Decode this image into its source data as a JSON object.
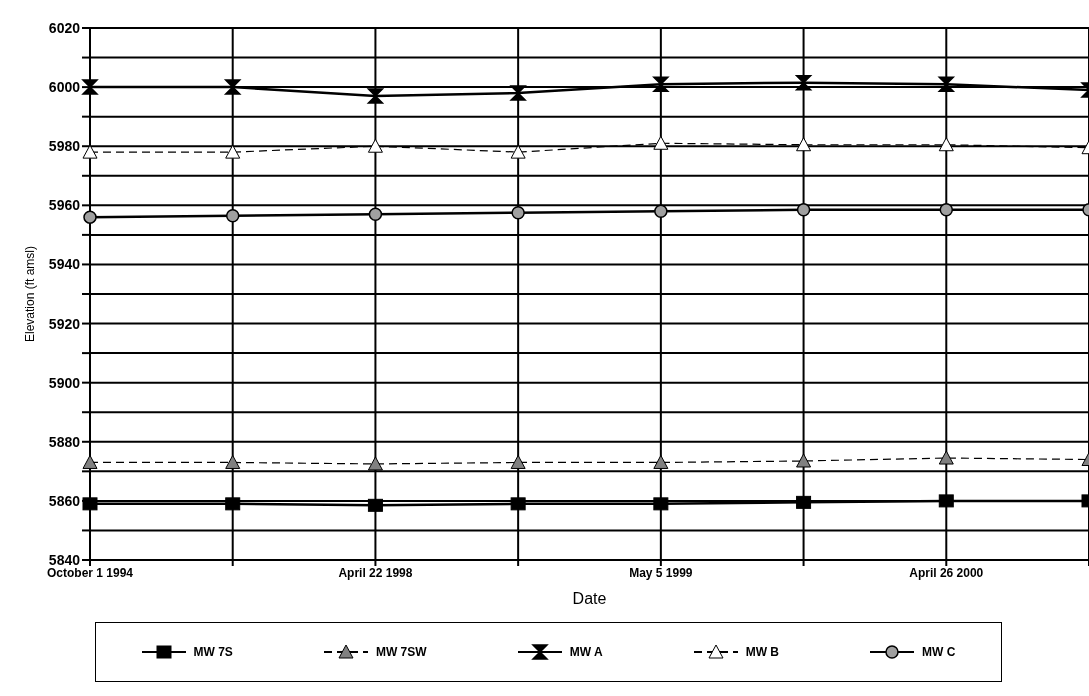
{
  "chart_data": {
    "type": "line",
    "xlabel": "Date",
    "ylabel": "Elevation (ft amsl)",
    "categories": [
      "October 1 1994",
      null,
      "April 22 1998",
      null,
      "May 5 1999",
      null,
      "April 26 2000",
      null
    ],
    "ylim": [
      5840,
      6020
    ],
    "yticks": [
      5840,
      {
        "value": 5850,
        "label": null
      },
      5860,
      {
        "value": 5870,
        "label": null
      },
      5880,
      {
        "value": 5890,
        "label": null
      },
      5900,
      {
        "value": 5910,
        "label": null
      },
      5920,
      {
        "value": 5930,
        "label": null
      },
      5940,
      {
        "value": 5950,
        "label": null
      },
      5960,
      {
        "value": 5970,
        "label": null
      },
      5980,
      {
        "value": 5990,
        "label": null
      },
      6000,
      {
        "value": 6010,
        "label": null
      },
      6020
    ],
    "grid": true,
    "legend": "bottom",
    "series": [
      {
        "name": "MW 7S",
        "color": "#000000",
        "marker": "square",
        "line_style": "solid",
        "values": [
          5859,
          5859,
          5858.5,
          5859,
          5859,
          5859.5,
          5860,
          5860
        ]
      },
      {
        "name": "MW 7SW",
        "color": "#808080",
        "marker": "triangle",
        "line_style": "dashed",
        "values": [
          5873,
          5873,
          5872.5,
          5873,
          5873,
          5873.5,
          5874.5,
          5874
        ]
      },
      {
        "name": "MW A",
        "color": "#000000",
        "marker": "star",
        "line_style": "solid",
        "values": [
          6000,
          6000,
          5997,
          5998,
          6001,
          6001.5,
          6001,
          5999
        ]
      },
      {
        "name": "MW B",
        "color": "#ffffff",
        "marker": "triangle",
        "line_style": "dashed",
        "values": [
          5978,
          5978,
          5980,
          5978,
          5981,
          5980.5,
          5980.5,
          5979.5
        ]
      },
      {
        "name": "MW C",
        "color": "#a0a0a0",
        "marker": "circle",
        "line_style": "solid",
        "values": [
          5956,
          5956.5,
          5957,
          5957.5,
          5958,
          5958.5,
          5958.5,
          5958.5
        ]
      }
    ]
  }
}
